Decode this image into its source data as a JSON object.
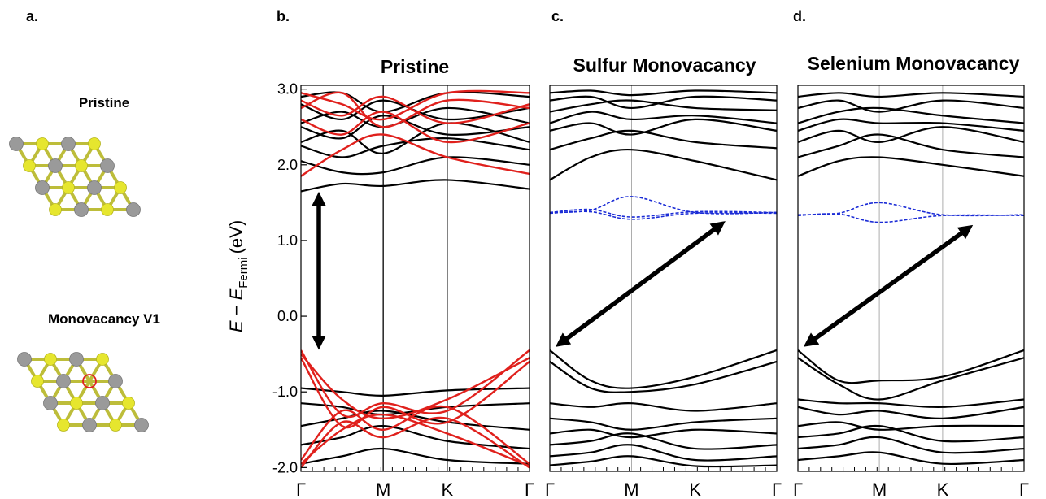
{
  "figure": {
    "panel_letters": [
      "a.",
      "b.",
      "c.",
      "d."
    ],
    "structure": {
      "pristine_title": "Pristine",
      "vacancy_title": "Monovacancy V1",
      "colors": {
        "metal": "#9a9a9a",
        "chalcogen": "#e6e62e",
        "vacancy_marker": "#e02020"
      }
    },
    "ylabel": {
      "prefix": "E − E",
      "subscript": "Fermi",
      "suffix": "(eV)"
    },
    "colors": {
      "bands": "#000000",
      "highlight_bands": "#e0201c",
      "defect_bands": "#1a2bd6"
    }
  },
  "chart_data": [
    {
      "type": "line",
      "panel": "b.",
      "title": "Pristine",
      "ylim": [
        -2.05,
        3.05
      ],
      "yticks": [
        3.0,
        2.0,
        1.0,
        0.0,
        -1.0,
        -2.0
      ],
      "ytick_labels": [
        "3.0",
        "2.0",
        "1.0",
        "0.0",
        "-1.0",
        "-2.0"
      ],
      "xticks": [
        "Γ",
        "M",
        "K",
        "Γ"
      ],
      "gap_arrow": {
        "from": 1.55,
        "to": -0.35,
        "style": "vertical"
      },
      "bands": {
        "black_conduction": [
          [
            1.65,
            1.75,
            1.72,
            1.8,
            1.68
          ],
          [
            2.05,
            1.9,
            1.9,
            2.1,
            2.0
          ],
          [
            2.25,
            2.1,
            2.25,
            2.35,
            2.2
          ],
          [
            2.3,
            2.45,
            2.15,
            2.55,
            2.3
          ],
          [
            2.5,
            2.35,
            2.65,
            2.4,
            2.5
          ],
          [
            2.55,
            2.7,
            2.5,
            2.75,
            2.55
          ],
          [
            2.8,
            2.6,
            2.85,
            2.6,
            2.75
          ],
          [
            2.9,
            2.95,
            2.7,
            2.95,
            2.9
          ]
        ],
        "red_conduction": [
          [
            1.85,
            2.2,
            2.4,
            2.1,
            1.88
          ],
          [
            2.6,
            2.4,
            2.7,
            2.3,
            2.55
          ],
          [
            2.75,
            2.95,
            2.5,
            2.85,
            2.75
          ],
          [
            2.85,
            2.65,
            2.9,
            2.55,
            2.8
          ],
          [
            2.95,
            2.8,
            2.6,
            2.95,
            2.95
          ]
        ],
        "red_valence": [
          [
            -0.45,
            -1.3,
            -1.15,
            -1.25,
            -0.45
          ],
          [
            -0.5,
            -1.1,
            -1.35,
            -1.1,
            -0.55
          ],
          [
            -0.55,
            -1.45,
            -1.2,
            -1.4,
            -0.6
          ],
          [
            -1.9,
            -1.25,
            -1.5,
            -1.2,
            -1.95
          ],
          [
            -1.95,
            -1.5,
            -1.3,
            -1.55,
            -1.98
          ],
          [
            -2.0,
            -1.4,
            -1.6,
            -1.35,
            -2.0
          ]
        ],
        "black_valence": [
          [
            -0.95,
            -1.0,
            -1.05,
            -0.98,
            -0.95
          ],
          [
            -1.15,
            -1.2,
            -1.3,
            -1.2,
            -1.15
          ],
          [
            -1.45,
            -1.35,
            -1.25,
            -1.4,
            -1.5
          ],
          [
            -1.7,
            -1.6,
            -1.45,
            -1.65,
            -1.75
          ],
          [
            -1.95,
            -1.85,
            -1.75,
            -1.9,
            -1.95
          ]
        ]
      }
    },
    {
      "type": "line",
      "panel": "c.",
      "title": "Sulfur Monovacancy",
      "ylim": [
        -2.05,
        3.05
      ],
      "xticks": [
        "Γ",
        "M",
        "K",
        "Γ"
      ],
      "gap_arrow": {
        "from_x": 0.0,
        "from_y": -0.35,
        "to_x": 0.77,
        "to_y": 1.2,
        "style": "diagonal"
      },
      "bands": {
        "black_conduction": [
          [
            1.8,
            2.1,
            2.2,
            2.05,
            1.8
          ],
          [
            2.2,
            2.35,
            2.45,
            2.3,
            2.22
          ],
          [
            2.45,
            2.55,
            2.4,
            2.6,
            2.45
          ],
          [
            2.55,
            2.7,
            2.6,
            2.65,
            2.55
          ],
          [
            2.7,
            2.8,
            2.85,
            2.75,
            2.72
          ],
          [
            2.85,
            2.9,
            2.75,
            2.9,
            2.85
          ],
          [
            2.95,
            2.98,
            2.92,
            2.98,
            2.95
          ]
        ],
        "defect": [
          [
            1.37,
            1.4,
            1.58,
            1.37,
            1.37
          ],
          [
            1.36,
            1.38,
            1.28,
            1.36,
            1.36
          ],
          [
            1.37,
            1.41,
            1.31,
            1.38,
            1.37
          ]
        ],
        "black_valence": [
          [
            -0.45,
            -0.85,
            -0.95,
            -0.8,
            -0.45
          ],
          [
            -0.6,
            -0.95,
            -1.0,
            -0.9,
            -0.6
          ],
          [
            -1.15,
            -1.2,
            -1.15,
            -1.25,
            -1.15
          ],
          [
            -1.35,
            -1.4,
            -1.5,
            -1.4,
            -1.35
          ],
          [
            -1.55,
            -1.5,
            -1.6,
            -1.5,
            -1.55
          ],
          [
            -1.7,
            -1.65,
            -1.55,
            -1.75,
            -1.7
          ],
          [
            -1.85,
            -1.8,
            -1.7,
            -1.9,
            -1.85
          ],
          [
            -1.97,
            -1.92,
            -1.85,
            -1.98,
            -1.97
          ]
        ]
      }
    },
    {
      "type": "line",
      "panel": "d.",
      "title": "Selenium Monovacancy",
      "ylim": [
        -2.05,
        3.05
      ],
      "xticks": [
        "Γ",
        "M",
        "K",
        "Γ"
      ],
      "gap_arrow": {
        "from_x": 0.0,
        "from_y": -0.35,
        "to_x": 0.77,
        "to_y": 1.15,
        "style": "diagonal"
      },
      "bands": {
        "black_conduction": [
          [
            1.85,
            2.05,
            2.1,
            2.0,
            1.85
          ],
          [
            2.1,
            2.25,
            2.4,
            2.2,
            2.1
          ],
          [
            2.3,
            2.45,
            2.3,
            2.5,
            2.3
          ],
          [
            2.45,
            2.6,
            2.55,
            2.55,
            2.45
          ],
          [
            2.55,
            2.7,
            2.75,
            2.65,
            2.55
          ],
          [
            2.75,
            2.85,
            2.7,
            2.85,
            2.75
          ],
          [
            2.9,
            2.95,
            2.9,
            2.95,
            2.9
          ]
        ],
        "defect": [
          [
            1.34,
            1.36,
            1.5,
            1.34,
            1.34
          ],
          [
            1.33,
            1.35,
            1.24,
            1.33,
            1.33
          ]
        ],
        "black_valence": [
          [
            -0.45,
            -0.85,
            -0.85,
            -0.8,
            -0.45
          ],
          [
            -0.55,
            -0.9,
            -1.1,
            -0.85,
            -0.55
          ],
          [
            -1.1,
            -1.15,
            -1.15,
            -1.2,
            -1.1
          ],
          [
            -1.2,
            -1.3,
            -1.25,
            -1.35,
            -1.2
          ],
          [
            -1.45,
            -1.4,
            -1.5,
            -1.45,
            -1.45
          ],
          [
            -1.6,
            -1.55,
            -1.45,
            -1.65,
            -1.6
          ],
          [
            -1.75,
            -1.7,
            -1.6,
            -1.8,
            -1.75
          ],
          [
            -1.9,
            -1.85,
            -1.8,
            -1.95,
            -1.9
          ]
        ]
      }
    }
  ]
}
